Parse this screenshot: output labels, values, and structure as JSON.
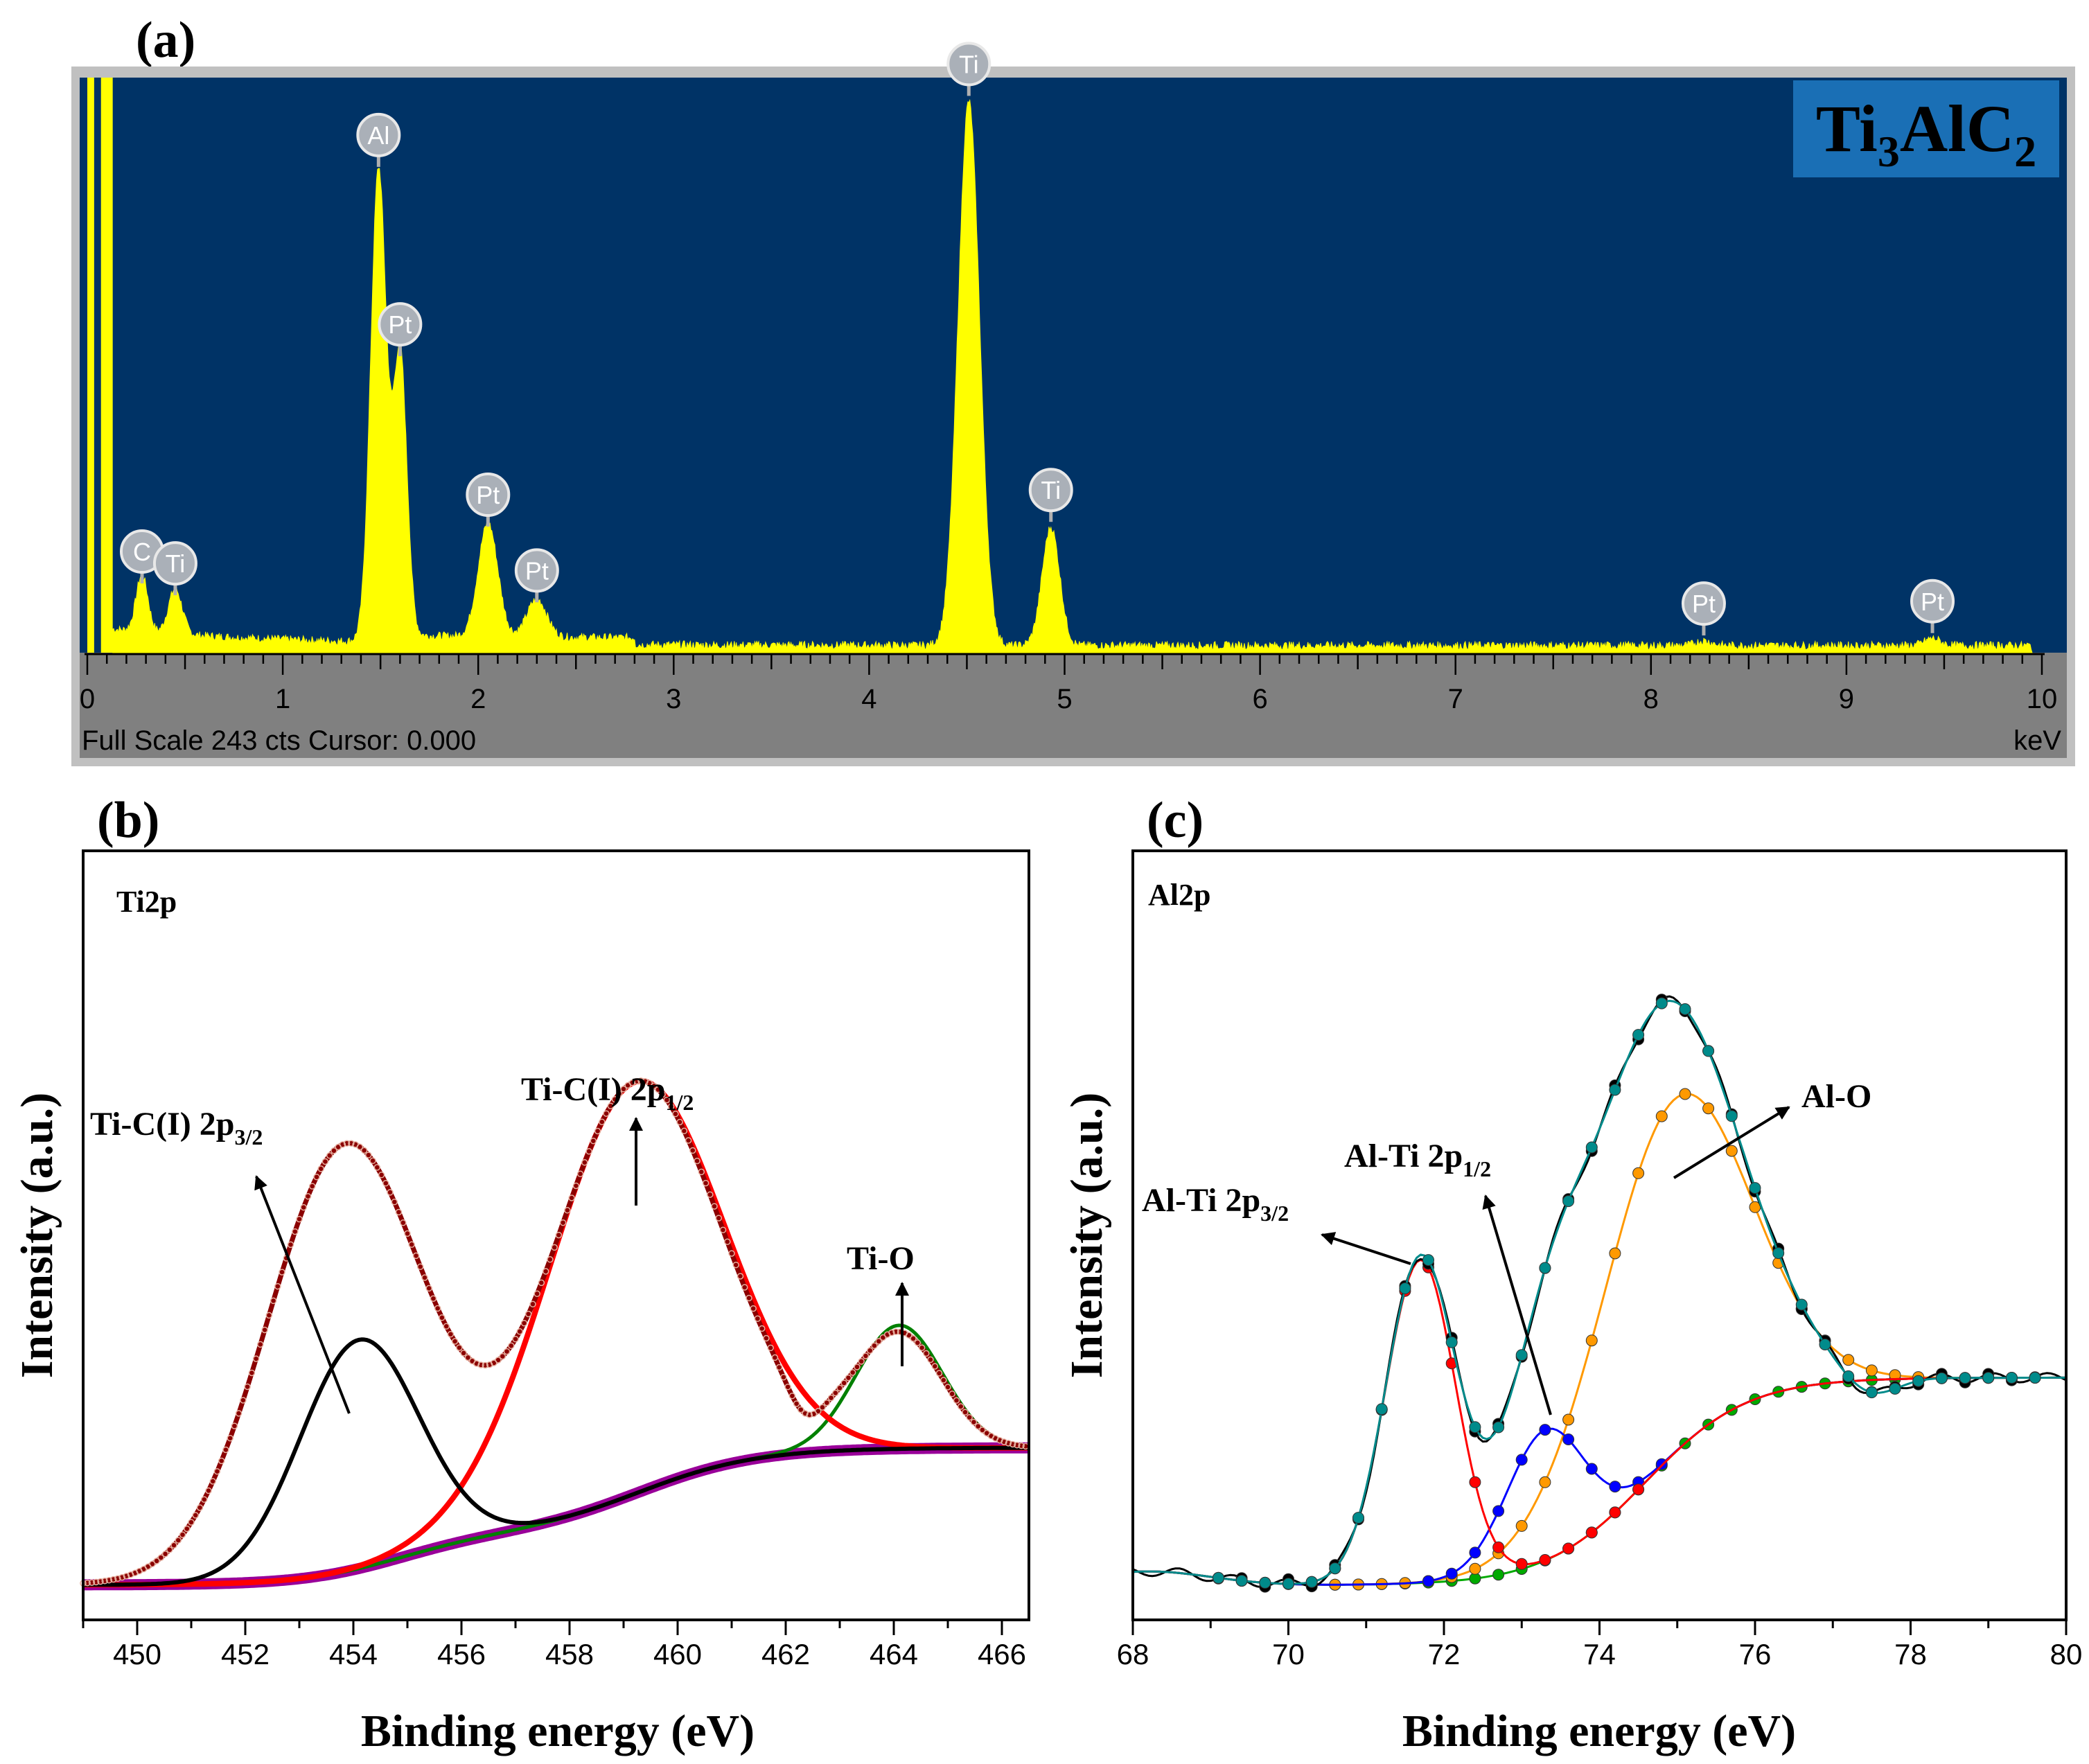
{
  "panels": {
    "a": {
      "label": "(a)"
    },
    "b": {
      "label": "(b)"
    },
    "c": {
      "label": "(c)"
    }
  },
  "chart_data": [
    {
      "id": "a",
      "type": "area",
      "title": "",
      "sample_main": "Ti",
      "sample_sub1": "3",
      "sample_mid": "AlC",
      "sample_sub2": "2",
      "xlabel": "keV",
      "footer": "Full Scale 243 cts Cursor: 0.000",
      "xlim": [
        0,
        10
      ],
      "ylim": [
        0,
        243
      ],
      "xticks": [
        "0",
        "1",
        "2",
        "3",
        "4",
        "5",
        "6",
        "7",
        "8",
        "9",
        "10"
      ],
      "peaks": [
        {
          "element": "C",
          "keV": 0.28,
          "counts": 24
        },
        {
          "element": "Ti",
          "keV": 0.45,
          "counts": 19
        },
        {
          "element": "Al",
          "keV": 1.49,
          "counts": 200
        },
        {
          "element": "Pt",
          "keV": 1.6,
          "counts": 120
        },
        {
          "element": "Pt",
          "keV": 2.05,
          "counts": 48
        },
        {
          "element": "Pt",
          "keV": 2.3,
          "counts": 16
        },
        {
          "element": "Ti",
          "keV": 4.51,
          "counts": 230
        },
        {
          "element": "Ti",
          "keV": 4.93,
          "counts": 50
        },
        {
          "element": "Pt",
          "keV": 8.27,
          "counts": 2
        },
        {
          "element": "Pt",
          "keV": 9.44,
          "counts": 3
        }
      ],
      "colors": {
        "background": "#003366",
        "spectrum": "#ffff00",
        "frame": "#c0c0c0",
        "axis_band": "#808080",
        "badge": "#1a6fb5"
      }
    },
    {
      "id": "b",
      "type": "line",
      "title": "Ti2p",
      "xlabel": "Binding energy (eV)",
      "ylabel": "Intensity (a.u.)",
      "xlim": [
        449,
        466.5
      ],
      "ylim": [
        0,
        1
      ],
      "xticks": [
        450,
        452,
        454,
        456,
        458,
        460,
        462,
        464,
        466
      ],
      "components": [
        {
          "name": "Ti-C(I) 2p3/2",
          "center": 454.1,
          "height": 0.3,
          "width": 1.1,
          "color": "#000000"
        },
        {
          "name": "Ti-C(I) 2p1/2",
          "center": 459.2,
          "height": 0.63,
          "width": 1.6,
          "color": "#ff0000"
        },
        {
          "name": "Ti-O",
          "center": 464.1,
          "height": 0.18,
          "width": 0.8,
          "color": "#008000"
        },
        {
          "name": "Background",
          "color": "#990099"
        },
        {
          "name": "Envelope",
          "peak_position": 453.9,
          "peak_height": 0.67,
          "color": "#8b0000"
        }
      ],
      "annotations": [
        {
          "main": "Ti-C(I) 2p",
          "sub": "3/2"
        },
        {
          "main": "Ti-C(I) 2p",
          "sub": "1/2"
        },
        {
          "main": "Ti-O",
          "sub": ""
        }
      ]
    },
    {
      "id": "c",
      "type": "line",
      "title": "Al2p",
      "xlabel": "Binding energy (eV)",
      "ylabel": "Intensity (a.u.)",
      "xlim": [
        68,
        80
      ],
      "ylim": [
        0,
        1
      ],
      "xticks": [
        68,
        70,
        72,
        74,
        76,
        78,
        80
      ],
      "components": [
        {
          "name": "Al-Ti 2p3/2",
          "center": 71.7,
          "height": 0.42,
          "width": 0.45,
          "color": "#ff0000"
        },
        {
          "name": "Al-Ti 2p1/2",
          "center": 73.3,
          "height": 0.17,
          "width": 0.5,
          "color": "#0000ff"
        },
        {
          "name": "Al-O",
          "center": 74.95,
          "height": 0.46,
          "width": 0.95,
          "color": "#ff9900"
        },
        {
          "name": "Background",
          "color": "#00aa00"
        },
        {
          "name": "Envelope",
          "peak_position": 74.7,
          "peak_height": 0.89,
          "color": "#008b8b"
        }
      ],
      "annotations": [
        {
          "main": "Al-Ti 2p",
          "sub": "3/2"
        },
        {
          "main": "Al-Ti 2p",
          "sub": "1/2"
        },
        {
          "main": "Al-O",
          "sub": ""
        }
      ]
    }
  ]
}
